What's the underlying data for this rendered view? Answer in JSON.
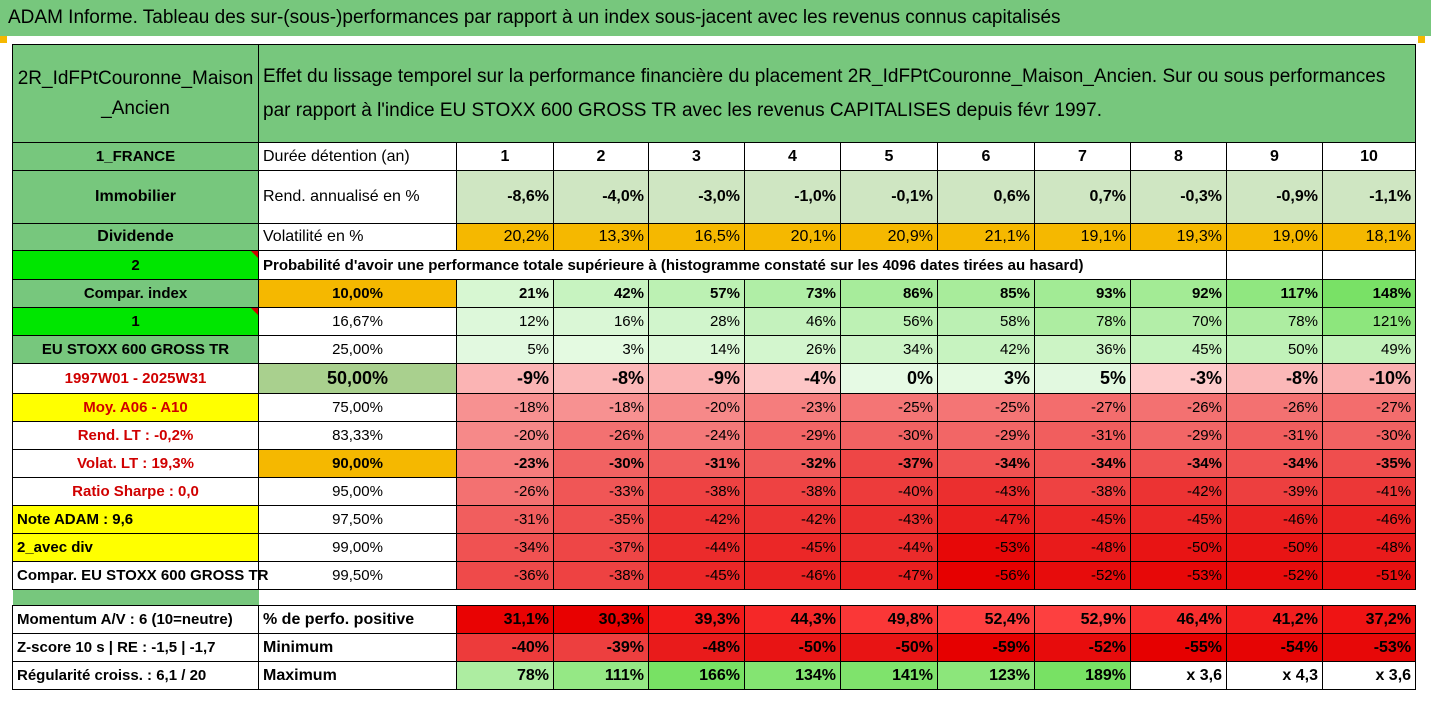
{
  "title": "ADAM Informe. Tableau des sur-(sous-)performances par rapport à un index sous-jacent avec les revenus connus capitalisés",
  "colors": {
    "green_header": "#77c77d",
    "orange": "#f5b800",
    "yellow": "#ffff00",
    "bright_green": "#00e600",
    "red_text": "#d00000"
  },
  "header": {
    "asset_name": "2R_IdFPtCouronne_Maison_Ancien",
    "description": "Effet du lissage temporel sur la performance financière du placement 2R_IdFPtCouronne_Maison_Ancien. Sur ou sous performances par rapport à l'indice EU STOXX 600 GROSS TR avec les revenus CAPITALISES depuis févr 1997."
  },
  "side_labels": {
    "country": "1_FRANCE",
    "category": "Immobilier",
    "dividend": "Dividende",
    "num2": "2",
    "compar_index": "Compar. index",
    "num1": "1",
    "index_name": "EU STOXX 600 GROSS TR",
    "period": "1997W01 - 2025W31",
    "moy": "Moy. A06 - A10",
    "rend_lt": "Rend. LT :   -0,2%",
    "volat_lt": "Volat. LT :   19,3%",
    "sharpe": "Ratio Sharpe :    0,0",
    "note": "Note ADAM : 9,6",
    "avec_div": "2_avec div",
    "compar_full": "Compar. EU STOXX 600 GROSS TR",
    "momentum": "Momentum A/V : 6 (10=neutre)",
    "zscore": "Z-score 10 s  |  RE : -1,5  |  -1,7",
    "regularite": "Régularité croiss. : 6,1 / 20"
  },
  "row_labels": {
    "duree": "Durée détention (an)",
    "rend": "Rend. annualisé en %",
    "volat": "Volatilité en %",
    "proba": "Probabilité d'avoir une performance totale supérieure à (histogramme constaté sur les 4096 dates tirées au hasard)",
    "perf_pos": "% de perfo. positive",
    "minimum": "Minimum",
    "maximum": "Maximum"
  },
  "years": [
    "1",
    "2",
    "3",
    "4",
    "5",
    "6",
    "7",
    "8",
    "9",
    "10"
  ],
  "rend": [
    "-8,6%",
    "-4,0%",
    "-3,0%",
    "-1,0%",
    "-0,1%",
    "0,6%",
    "0,7%",
    "-0,3%",
    "-0,9%",
    "-1,1%"
  ],
  "volat": [
    "20,2%",
    "13,3%",
    "16,5%",
    "20,1%",
    "20,9%",
    "21,1%",
    "19,1%",
    "19,3%",
    "19,0%",
    "18,1%"
  ],
  "quantiles": [
    {
      "p": "10,00%",
      "v": [
        "21%",
        "42%",
        "57%",
        "73%",
        "86%",
        "85%",
        "93%",
        "92%",
        "117%",
        "148%"
      ]
    },
    {
      "p": "16,67%",
      "v": [
        "12%",
        "16%",
        "28%",
        "46%",
        "56%",
        "58%",
        "78%",
        "70%",
        "78%",
        "121%"
      ]
    },
    {
      "p": "25,00%",
      "v": [
        "5%",
        "3%",
        "14%",
        "26%",
        "34%",
        "42%",
        "36%",
        "45%",
        "50%",
        "49%"
      ]
    },
    {
      "p": "50,00%",
      "v": [
        "-9%",
        "-8%",
        "-9%",
        "-4%",
        "0%",
        "3%",
        "5%",
        "-3%",
        "-8%",
        "-10%"
      ]
    },
    {
      "p": "75,00%",
      "v": [
        "-18%",
        "-18%",
        "-20%",
        "-23%",
        "-25%",
        "-25%",
        "-27%",
        "-26%",
        "-26%",
        "-27%"
      ]
    },
    {
      "p": "83,33%",
      "v": [
        "-20%",
        "-26%",
        "-24%",
        "-29%",
        "-30%",
        "-29%",
        "-31%",
        "-29%",
        "-31%",
        "-30%"
      ]
    },
    {
      "p": "90,00%",
      "v": [
        "-23%",
        "-30%",
        "-31%",
        "-32%",
        "-37%",
        "-34%",
        "-34%",
        "-34%",
        "-34%",
        "-35%"
      ]
    },
    {
      "p": "95,00%",
      "v": [
        "-26%",
        "-33%",
        "-38%",
        "-38%",
        "-40%",
        "-43%",
        "-38%",
        "-42%",
        "-39%",
        "-41%"
      ]
    },
    {
      "p": "97,50%",
      "v": [
        "-31%",
        "-35%",
        "-42%",
        "-42%",
        "-43%",
        "-47%",
        "-45%",
        "-45%",
        "-46%",
        "-46%"
      ]
    },
    {
      "p": "99,00%",
      "v": [
        "-34%",
        "-37%",
        "-44%",
        "-45%",
        "-44%",
        "-53%",
        "-48%",
        "-50%",
        "-50%",
        "-48%"
      ]
    },
    {
      "p": "99,50%",
      "v": [
        "-36%",
        "-38%",
        "-45%",
        "-46%",
        "-47%",
        "-56%",
        "-52%",
        "-53%",
        "-52%",
        "-51%"
      ]
    }
  ],
  "perf_pos": [
    "31,1%",
    "30,3%",
    "39,3%",
    "44,3%",
    "49,8%",
    "52,4%",
    "52,9%",
    "46,4%",
    "41,2%",
    "37,2%"
  ],
  "minimum": [
    "-40%",
    "-39%",
    "-48%",
    "-50%",
    "-50%",
    "-59%",
    "-52%",
    "-55%",
    "-54%",
    "-53%"
  ],
  "maximum": [
    "78%",
    "111%",
    "166%",
    "134%",
    "141%",
    "123%",
    "189%",
    "x 3,6",
    "x 4,3",
    "x 3,6"
  ]
}
